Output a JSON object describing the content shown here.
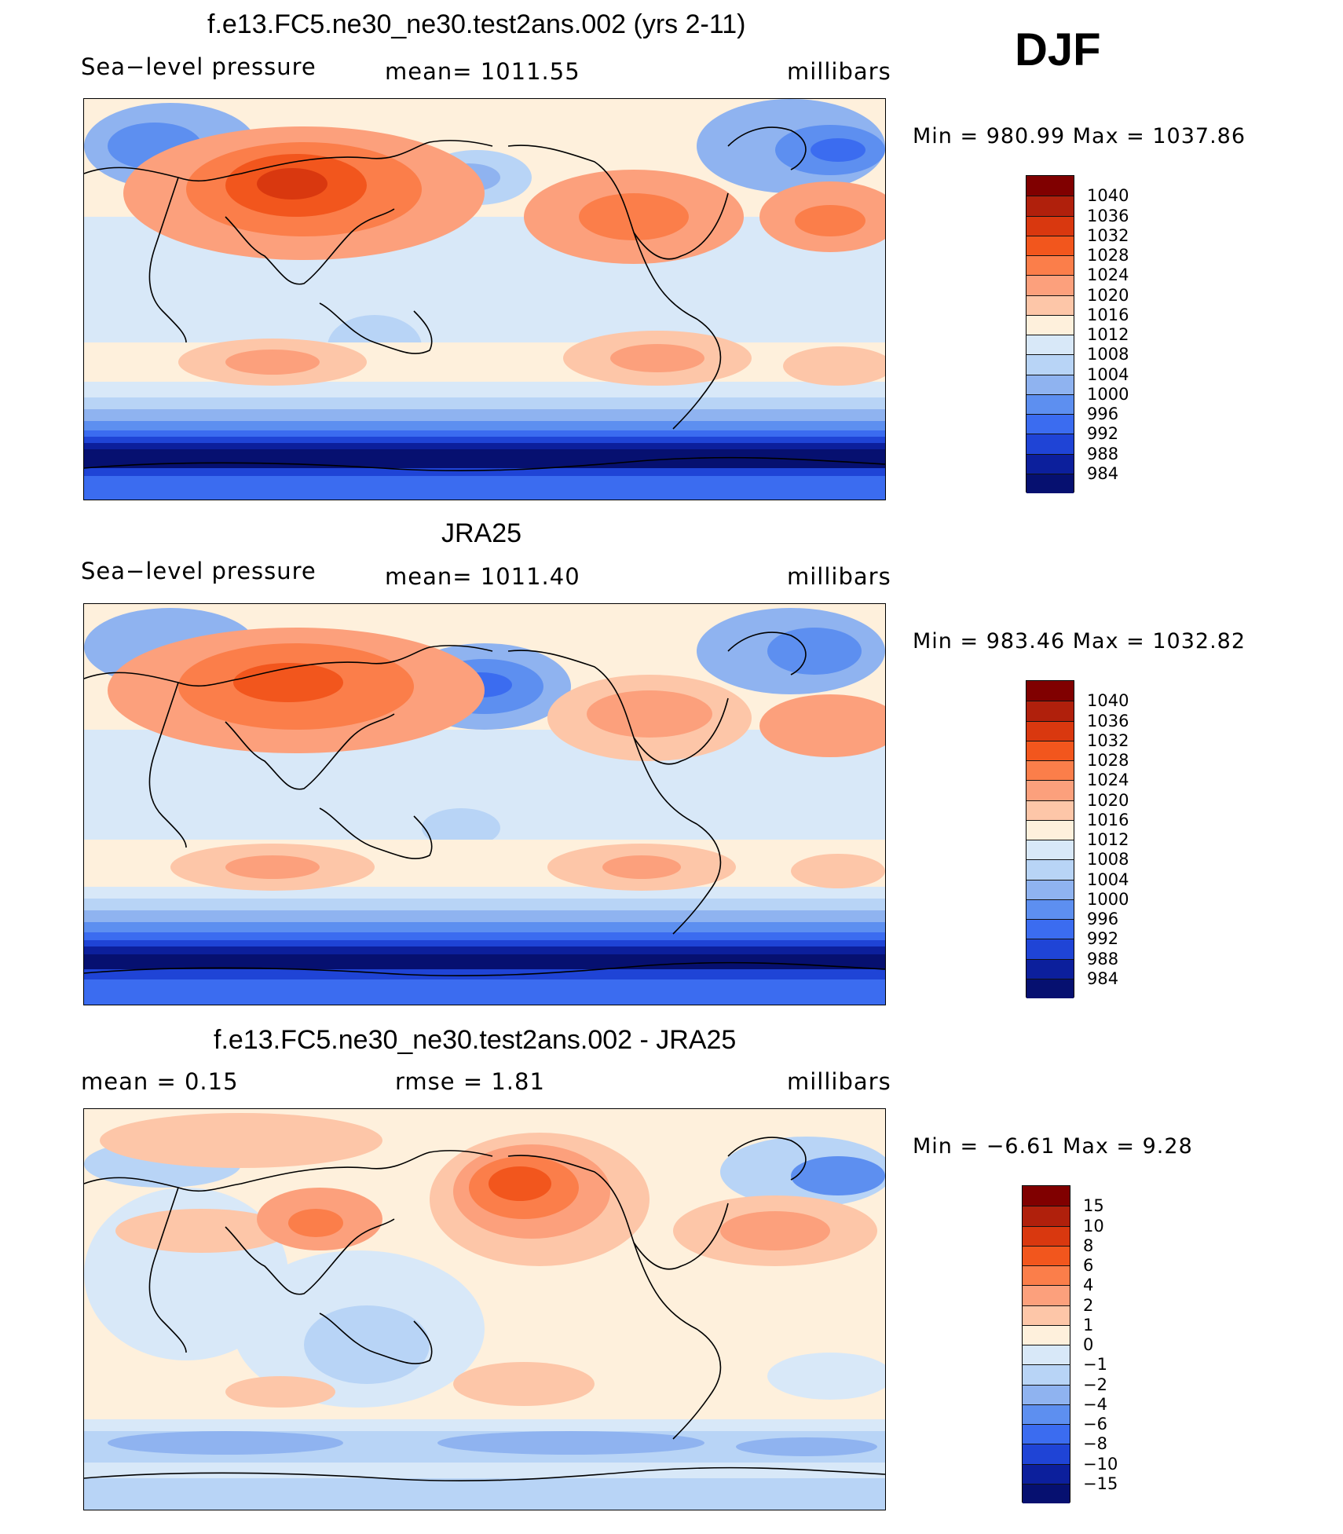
{
  "season": "DJF",
  "panels": [
    {
      "title": "f.e13.FC5.ne30_ne30.test2ans.002 (yrs 2-11)",
      "left_label": "Sea−level pressure",
      "center_label": "mean=  1011.55",
      "right_label": "millibars",
      "range_text": "Min  =  980.99  Max  =  1037.86",
      "colorbar": {
        "labels": [
          "1040",
          "1036",
          "1032",
          "1028",
          "1024",
          "1020",
          "1016",
          "1012",
          "1008",
          "1004",
          "1000",
          "996",
          "992",
          "988",
          "984"
        ],
        "colors": [
          "#800000",
          "#b0200c",
          "#d9380f",
          "#f2561d",
          "#fb7e4a",
          "#fca07c",
          "#fdc6a8",
          "#fef0dc",
          "#d8e8f8",
          "#b8d4f6",
          "#8fb3f0",
          "#5d8ff0",
          "#3b6cf0",
          "#1f44d6",
          "#0c1f9c",
          "#061070"
        ]
      }
    },
    {
      "title": "JRA25",
      "left_label": "Sea−level pressure",
      "center_label": "mean=  1011.40",
      "right_label": "millibars",
      "range_text": "Min  =  983.46  Max  =  1032.82",
      "colorbar": {
        "labels": [
          "1040",
          "1036",
          "1032",
          "1028",
          "1024",
          "1020",
          "1016",
          "1012",
          "1008",
          "1004",
          "1000",
          "996",
          "992",
          "988",
          "984"
        ],
        "colors": [
          "#800000",
          "#b0200c",
          "#d9380f",
          "#f2561d",
          "#fb7e4a",
          "#fca07c",
          "#fdc6a8",
          "#fef0dc",
          "#d8e8f8",
          "#b8d4f6",
          "#8fb3f0",
          "#5d8ff0",
          "#3b6cf0",
          "#1f44d6",
          "#0c1f9c",
          "#061070"
        ]
      }
    },
    {
      "title": "f.e13.FC5.ne30_ne30.test2ans.002 - JRA25",
      "left_label": "mean  =      0.15",
      "center_label": "rmse  =      1.81",
      "right_label": "millibars",
      "range_text": "Min  =    −6.61  Max  =     9.28",
      "colorbar": {
        "labels": [
          "15",
          "10",
          "8",
          "6",
          "4",
          "2",
          "1",
          "0",
          "−1",
          "−2",
          "−4",
          "−6",
          "−8",
          "−10",
          "−15"
        ],
        "colors": [
          "#800000",
          "#b0200c",
          "#d9380f",
          "#f2561d",
          "#fb7e4a",
          "#fca07c",
          "#fdc6a8",
          "#fef0dc",
          "#d8e8f8",
          "#b8d4f6",
          "#8fb3f0",
          "#5d8ff0",
          "#3b6cf0",
          "#1f44d6",
          "#0c1f9c",
          "#061070"
        ]
      }
    }
  ]
}
